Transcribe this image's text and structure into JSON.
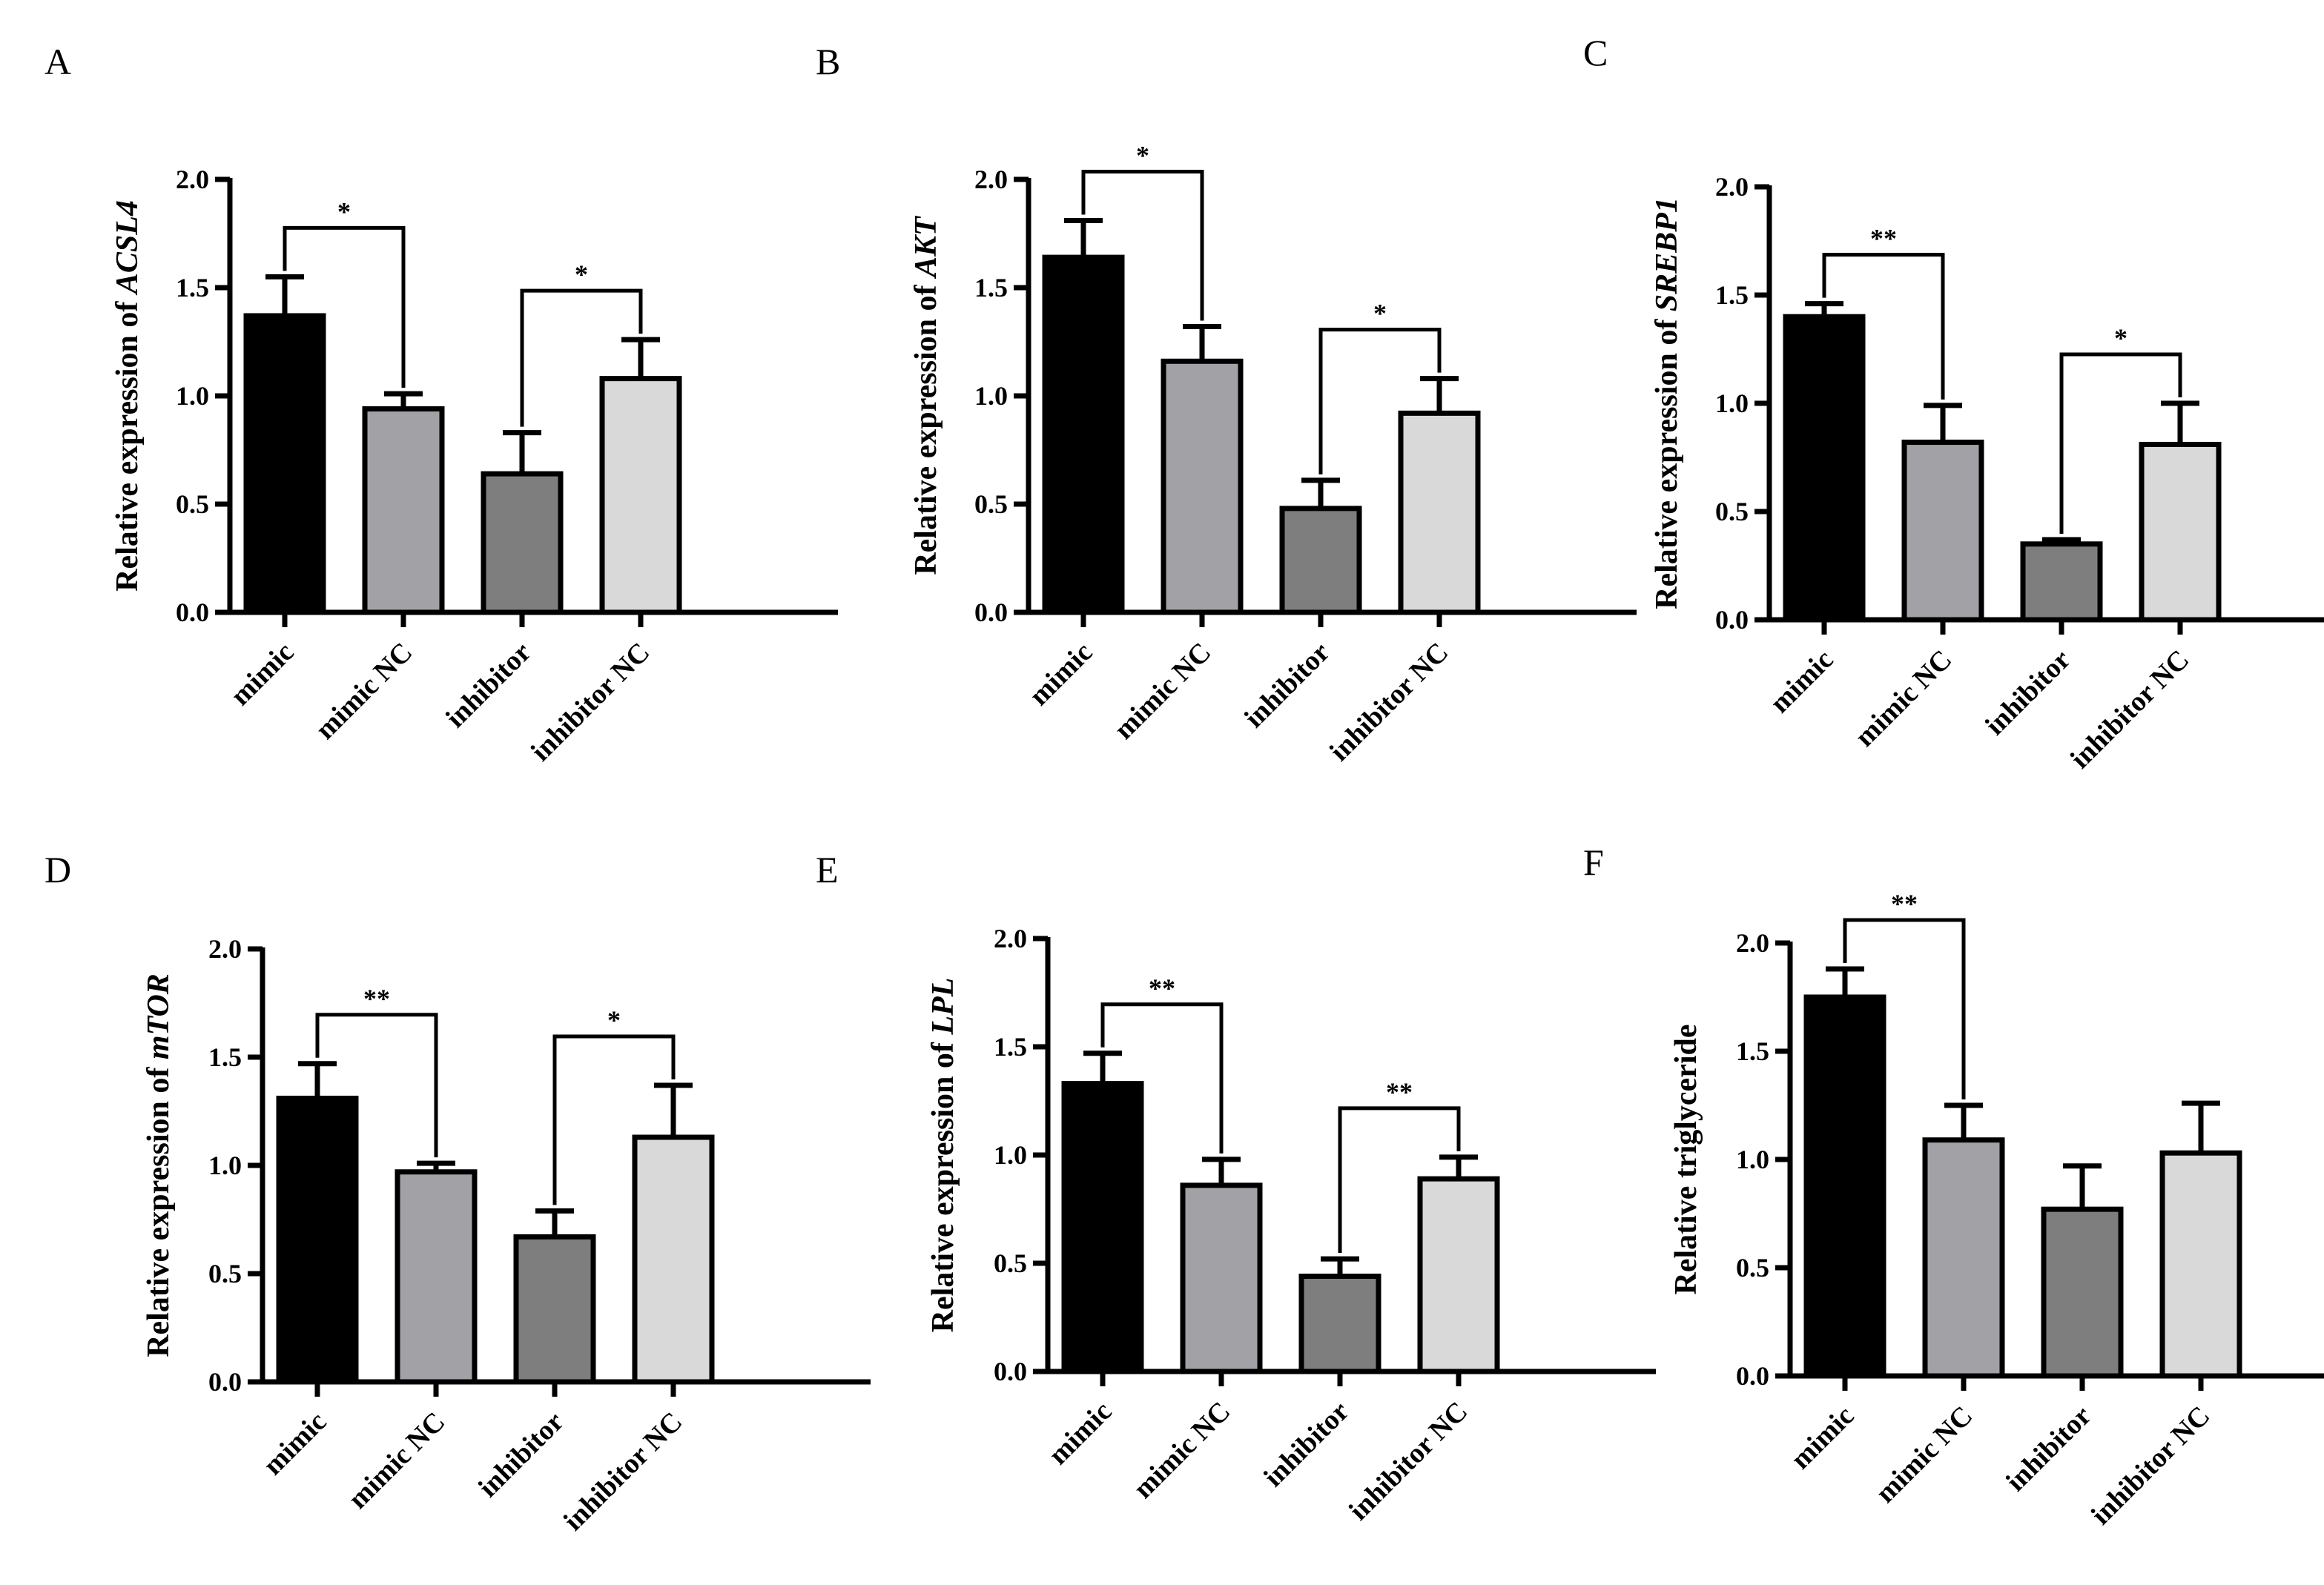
{
  "colors": {
    "axis": "#000000",
    "bar_mimic": "#000000",
    "bar_mimic_nc": "#a1a1a6",
    "bar_inhibitor": "#7e7e7e",
    "bar_inhibitor_nc": "#d9d9d9"
  },
  "chart_data": [
    {
      "type": "bar",
      "panel": "A",
      "title": "",
      "ylabel_prefix": "Relative expression of ",
      "ylabel_gene": "ACSL4",
      "categories": [
        "mimic",
        "mimic NC",
        "inhibitor",
        "inhibitor NC"
      ],
      "values": [
        1.37,
        0.94,
        0.64,
        1.08
      ],
      "errors": [
        0.18,
        0.07,
        0.19,
        0.18
      ],
      "ylim": [
        0,
        2.0
      ],
      "yticks": [
        "0.0",
        "0.5",
        "1.0",
        "1.5",
        "2.0"
      ],
      "significance": [
        {
          "from": 0,
          "to": 1,
          "label": "*"
        },
        {
          "from": 2,
          "to": 3,
          "label": "*"
        }
      ]
    },
    {
      "type": "bar",
      "panel": "B",
      "title": "",
      "ylabel_prefix": "Relative expression of ",
      "ylabel_gene": "AKT",
      "categories": [
        "mimic",
        "mimic NC",
        "inhibitor",
        "inhibitor NC"
      ],
      "values": [
        1.64,
        1.16,
        0.48,
        0.92
      ],
      "errors": [
        0.17,
        0.16,
        0.13,
        0.16
      ],
      "ylim": [
        0,
        2.0
      ],
      "yticks": [
        "0.0",
        "0.5",
        "1.0",
        "1.5",
        "2.0"
      ],
      "significance": [
        {
          "from": 0,
          "to": 1,
          "label": "*"
        },
        {
          "from": 2,
          "to": 3,
          "label": "*"
        }
      ]
    },
    {
      "type": "bar",
      "panel": "C",
      "title": "",
      "ylabel_prefix": "Relative expression of ",
      "ylabel_gene": "SREBP1",
      "categories": [
        "mimic",
        "mimic NC",
        "inhibitor",
        "inhibitor NC"
      ],
      "values": [
        1.4,
        0.82,
        0.35,
        0.81
      ],
      "errors": [
        0.06,
        0.17,
        0.02,
        0.19
      ],
      "ylim": [
        0,
        2.0
      ],
      "yticks": [
        "0.0",
        "0.5",
        "1.0",
        "1.5",
        "2.0"
      ],
      "significance": [
        {
          "from": 0,
          "to": 1,
          "label": "**"
        },
        {
          "from": 2,
          "to": 3,
          "label": "*"
        }
      ]
    },
    {
      "type": "bar",
      "panel": "D",
      "title": "",
      "ylabel_prefix": "Relative expression of ",
      "ylabel_gene": "mTOR",
      "categories": [
        "mimic",
        "mimic NC",
        "inhibitor",
        "inhibitor NC"
      ],
      "values": [
        1.31,
        0.97,
        0.67,
        1.13
      ],
      "errors": [
        0.16,
        0.04,
        0.12,
        0.24
      ],
      "ylim": [
        0,
        2.0
      ],
      "yticks": [
        "0.0",
        "0.5",
        "1.0",
        "1.5",
        "2.0"
      ],
      "significance": [
        {
          "from": 0,
          "to": 1,
          "label": "**"
        },
        {
          "from": 2,
          "to": 3,
          "label": "*"
        }
      ]
    },
    {
      "type": "bar",
      "panel": "E",
      "title": "",
      "ylabel_prefix": "Relative expression of ",
      "ylabel_gene": "LPL",
      "categories": [
        "mimic",
        "mimic NC",
        "inhibitor",
        "inhibitor NC"
      ],
      "values": [
        1.33,
        0.86,
        0.44,
        0.89
      ],
      "errors": [
        0.14,
        0.12,
        0.08,
        0.1
      ],
      "ylim": [
        0,
        2.0
      ],
      "yticks": [
        "0.0",
        "0.5",
        "1.0",
        "1.5",
        "2.0"
      ],
      "significance": [
        {
          "from": 0,
          "to": 1,
          "label": "**"
        },
        {
          "from": 2,
          "to": 3,
          "label": "**"
        }
      ]
    },
    {
      "type": "bar",
      "panel": "F",
      "title": "",
      "ylabel_prefix": "Relative triglyceride",
      "ylabel_gene": "",
      "categories": [
        "mimic",
        "mimic NC",
        "inhibitor",
        "inhibitor NC"
      ],
      "values": [
        1.75,
        1.09,
        0.77,
        1.03
      ],
      "errors": [
        0.13,
        0.16,
        0.2,
        0.23
      ],
      "ylim": [
        0,
        2.0
      ],
      "yticks": [
        "0.0",
        "0.5",
        "1.0",
        "1.5",
        "2.0"
      ],
      "significance": [
        {
          "from": 0,
          "to": 1,
          "label": "**"
        }
      ]
    }
  ]
}
